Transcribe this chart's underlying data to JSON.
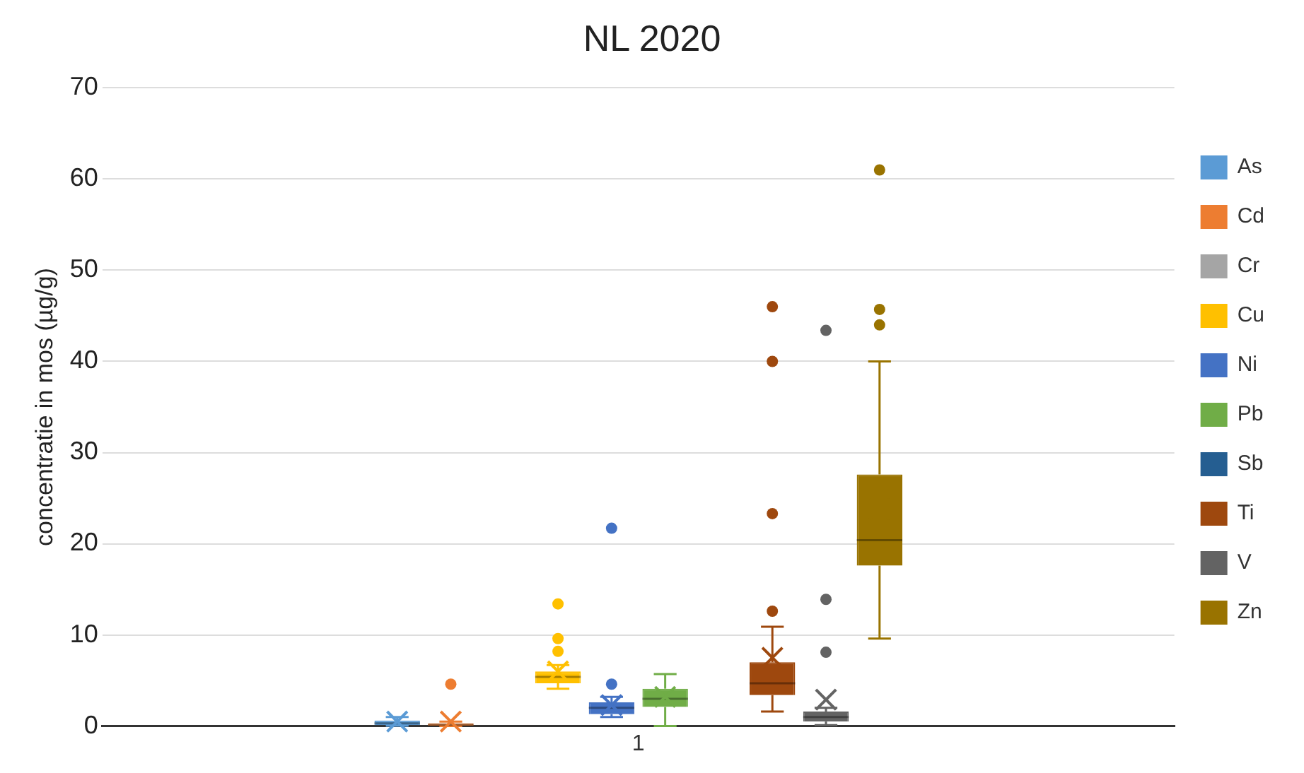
{
  "chart_data": {
    "type": "box",
    "title": "NL 2020",
    "ylabel": "concentratie in mos (µg/g)",
    "categories": [
      "1"
    ],
    "ylim": [
      0,
      70
    ],
    "yticks": [
      0,
      10,
      20,
      30,
      40,
      50,
      60,
      70
    ],
    "grid": "y",
    "legend": "right",
    "series": [
      {
        "name": "As",
        "color": "#5b9bd5",
        "boxes": [
          {
            "low": 0.05,
            "q1": 0.1,
            "median": 0.3,
            "q3": 0.6,
            "high": 1.0,
            "mean": 0.5
          }
        ]
      },
      {
        "name": "Cd",
        "color": "#ed7d31",
        "boxes": [
          {
            "low": 0,
            "q1": 0.05,
            "median": 0.15,
            "q3": 0.3,
            "high": 0.5,
            "mean": 0.5,
            "outliers": [
              4.6
            ]
          }
        ]
      },
      {
        "name": "Cr",
        "color": "#a5a5a5",
        "boxes": [
          null
        ]
      },
      {
        "name": "Cu",
        "color": "#ffc000",
        "boxes": [
          {
            "low": 4.1,
            "q1": 4.7,
            "median": 5.4,
            "q3": 6.0,
            "high": 6.7,
            "mean": 6.0,
            "outliers": [
              8.2,
              9.6,
              13.4
            ]
          }
        ]
      },
      {
        "name": "Ni",
        "color": "#4472c4",
        "boxes": [
          {
            "low": 1.0,
            "q1": 1.3,
            "median": 2.0,
            "q3": 2.6,
            "high": 3.2,
            "mean": 2.3,
            "outliers": [
              4.6,
              21.7
            ]
          }
        ]
      },
      {
        "name": "Pb",
        "color": "#70ad47",
        "boxes": [
          {
            "low": 0,
            "q1": 2.1,
            "median": 3.0,
            "q3": 4.1,
            "high": 5.7,
            "mean": 3.2
          }
        ]
      },
      {
        "name": "Sb",
        "color": "#255e91",
        "boxes": [
          null
        ]
      },
      {
        "name": "Ti",
        "color": "#9e480e",
        "boxes": [
          {
            "low": 1.6,
            "q1": 3.4,
            "median": 4.7,
            "q3": 7.0,
            "high": 10.9,
            "mean": 7.5,
            "outliers": [
              12.6,
              23.3,
              40.0,
              46.0
            ]
          }
        ]
      },
      {
        "name": "V",
        "color": "#636363",
        "boxes": [
          {
            "low": 0.1,
            "q1": 0.5,
            "median": 1.0,
            "q3": 1.6,
            "high": 2.0,
            "mean": 2.9,
            "outliers": [
              8.1,
              13.9,
              43.4
            ]
          }
        ]
      },
      {
        "name": "Zn",
        "color": "#997300",
        "boxes": [
          {
            "low": 9.6,
            "q1": 17.6,
            "median": 20.4,
            "q3": 27.6,
            "high": 40.0,
            "mean": 23.8,
            "outliers": [
              44.0,
              45.7,
              61.0
            ]
          }
        ]
      }
    ]
  }
}
